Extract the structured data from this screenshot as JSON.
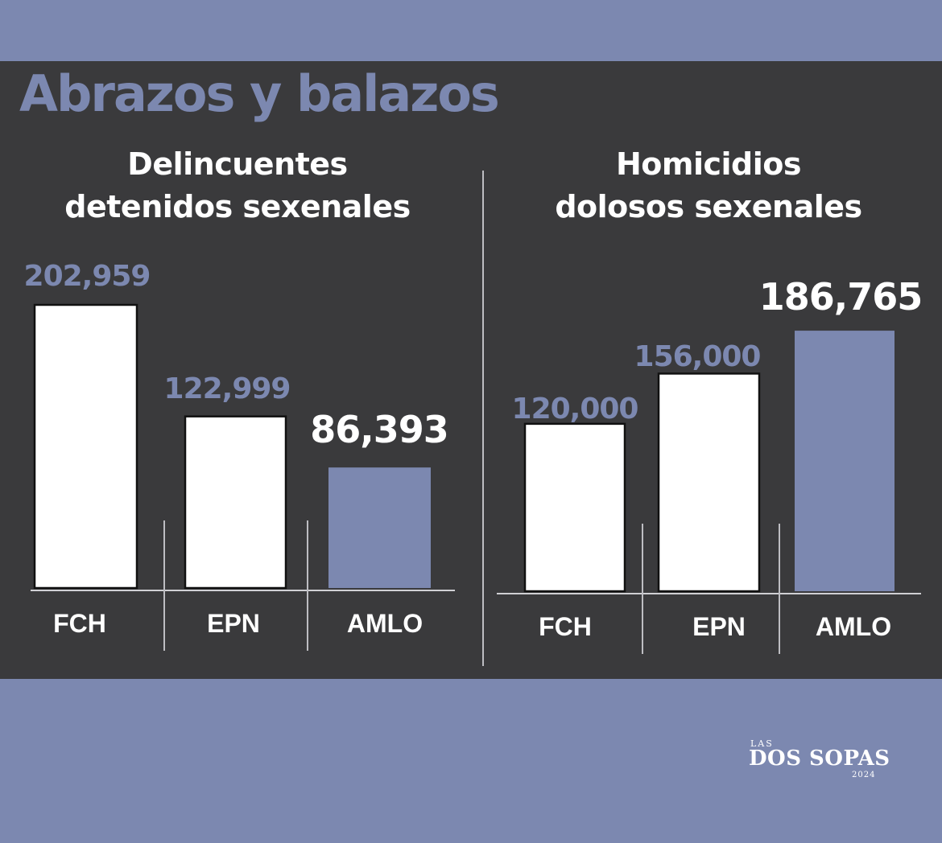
{
  "title": "Abrazos y balazos",
  "colors": {
    "background": "#7c88b0",
    "panel": "#3a3a3c",
    "accent": "#7c88b0",
    "bar": "#ffffff"
  },
  "chart_data": [
    {
      "type": "bar",
      "title": "Delincuentes detenidos sexenales",
      "title_lines": [
        "Delincuentes",
        "detenidos sexenales"
      ],
      "categories": [
        "FCH",
        "EPN",
        "AMLO"
      ],
      "values": [
        202959,
        122999,
        86393
      ],
      "value_labels": [
        "202,959",
        "122,999",
        "86,393"
      ],
      "highlight": "AMLO",
      "xlabel": "",
      "ylabel": ""
    },
    {
      "type": "bar",
      "title": "Homicidios dolosos sexenales",
      "title_lines": [
        "Homicidios",
        "dolosos sexenales"
      ],
      "categories": [
        "FCH",
        "EPN",
        "AMLO"
      ],
      "values": [
        120000,
        156000,
        186765
      ],
      "value_labels": [
        "120,000",
        "156,000",
        "186,765"
      ],
      "highlight": "AMLO",
      "xlabel": "",
      "ylabel": ""
    }
  ],
  "logo": {
    "small": "LAS",
    "main": "DOS SOPAS",
    "year": "2024"
  }
}
